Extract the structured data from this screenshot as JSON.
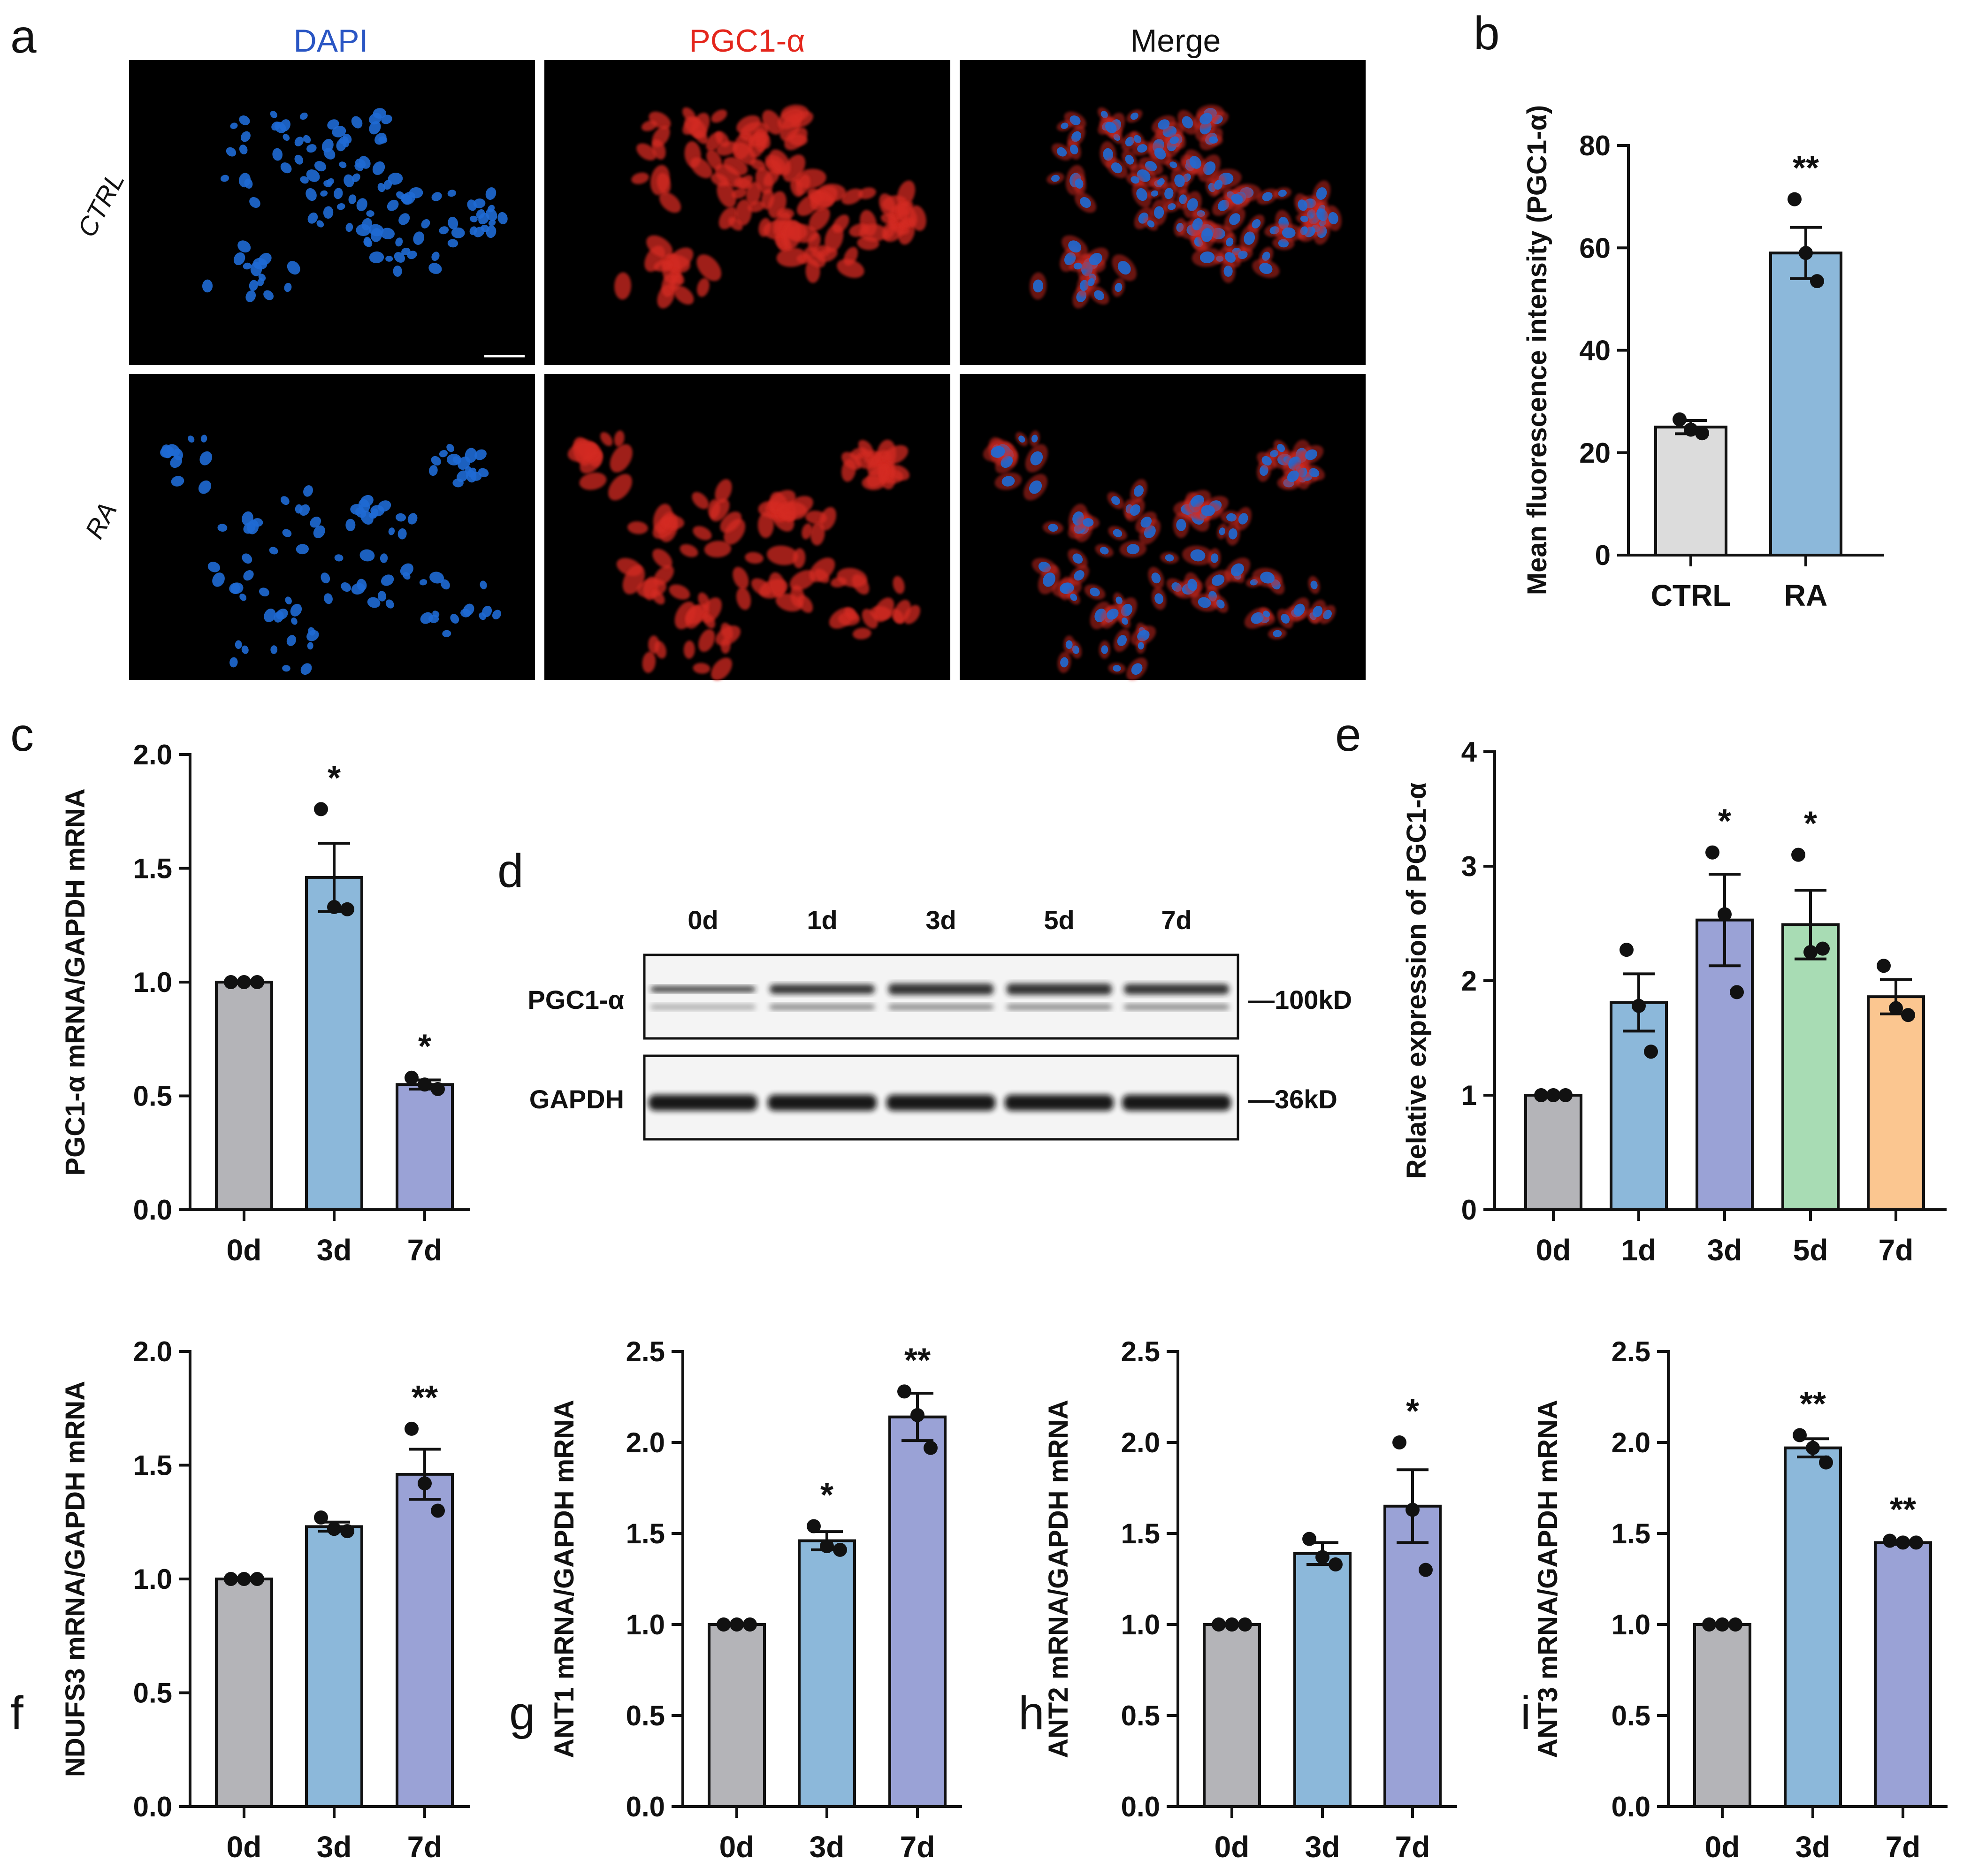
{
  "colors": {
    "gray": "#b4b4b8",
    "blue": "#8cb8da",
    "purple": "#9aa2d6",
    "green": "#a8dcb4",
    "orange": "#fbc690",
    "ctrl_gray": "#dcdcdc",
    "dapi_text": "#2a56c4",
    "pgc_text": "#e4261c"
  },
  "panel_a": {
    "letter": "a",
    "columns": [
      "DAPI",
      "PGC1-α",
      "Merge"
    ],
    "rows": [
      "CTRL",
      "RA"
    ]
  },
  "panel_d": {
    "letter": "d",
    "lanes": [
      "0d",
      "1d",
      "3d",
      "5d",
      "7d"
    ],
    "proteins": [
      {
        "name": "PGC1-α",
        "size": "—100kD"
      },
      {
        "name": "GAPDH",
        "size": "—36kD"
      }
    ]
  },
  "chart_data": [
    {
      "id": "b",
      "type": "bar",
      "letter": "b",
      "ylabel": "Mean fluorescence intensity (PGC1-α)",
      "ylim": [
        0,
        80
      ],
      "yticks": [
        0,
        20,
        40,
        60,
        80
      ],
      "tick_labels": [
        "0",
        "20",
        "40",
        "60",
        "80"
      ],
      "categories": [
        "CTRL",
        "RA"
      ],
      "values": [
        25,
        59
      ],
      "errors": [
        1.3,
        5.0
      ],
      "points": [
        [
          26.5,
          24.5,
          23.8
        ],
        [
          69.5,
          59,
          53.5
        ]
      ],
      "colors": [
        "ctrl_gray",
        "blue"
      ],
      "significance": [
        "",
        "**"
      ]
    },
    {
      "id": "c",
      "type": "bar",
      "letter": "c",
      "ylabel": "PGC1-α mRNA/GAPDH mRNA",
      "ylim": [
        0,
        2
      ],
      "yticks": [
        0,
        0.5,
        1,
        1.5,
        2
      ],
      "tick_labels": [
        "0.0",
        "0.5",
        "1.0",
        "1.5",
        "2.0"
      ],
      "categories": [
        "0d",
        "3d",
        "7d"
      ],
      "values": [
        1.0,
        1.46,
        0.55
      ],
      "errors": [
        0,
        0.15,
        0.02
      ],
      "points": [
        [
          1,
          1,
          1
        ],
        [
          1.76,
          1.33,
          1.32
        ],
        [
          0.58,
          0.55,
          0.53
        ]
      ],
      "colors": [
        "gray",
        "blue",
        "purple"
      ],
      "significance": [
        "",
        "*",
        "*"
      ]
    },
    {
      "id": "e",
      "type": "bar",
      "letter": "e",
      "ylabel": "Relative expression of PGC1-α",
      "ylim": [
        0,
        4
      ],
      "yticks": [
        0,
        1,
        2,
        3,
        4
      ],
      "tick_labels": [
        "0",
        "1",
        "2",
        "3",
        "4"
      ],
      "categories": [
        "0d",
        "1d",
        "3d",
        "5d",
        "7d"
      ],
      "values": [
        1.0,
        1.81,
        2.53,
        2.49,
        1.86
      ],
      "errors": [
        0,
        0.25,
        0.4,
        0.3,
        0.15
      ],
      "points": [
        [
          1,
          1,
          1
        ],
        [
          2.27,
          1.78,
          1.38
        ],
        [
          3.12,
          2.58,
          1.9
        ],
        [
          3.1,
          2.25,
          2.28
        ],
        [
          2.13,
          1.76,
          1.7
        ]
      ],
      "colors": [
        "gray",
        "blue",
        "purple",
        "green",
        "orange"
      ],
      "significance": [
        "",
        "",
        "*",
        "*",
        ""
      ]
    },
    {
      "id": "f",
      "type": "bar",
      "letter": "f",
      "ylabel": "NDUFS3 mRNA/GAPDH mRNA",
      "ylim": [
        0,
        2
      ],
      "yticks": [
        0,
        0.5,
        1,
        1.5,
        2
      ],
      "tick_labels": [
        "0.0",
        "0.5",
        "1.0",
        "1.5",
        "2.0"
      ],
      "categories": [
        "0d",
        "3d",
        "7d"
      ],
      "values": [
        1.0,
        1.23,
        1.46
      ],
      "errors": [
        0,
        0.02,
        0.11
      ],
      "points": [
        [
          1,
          1,
          1
        ],
        [
          1.27,
          1.22,
          1.21
        ],
        [
          1.66,
          1.42,
          1.3
        ]
      ],
      "colors": [
        "gray",
        "blue",
        "purple"
      ],
      "significance": [
        "",
        "",
        "**"
      ]
    },
    {
      "id": "g",
      "type": "bar",
      "letter": "g",
      "ylabel": "ANT1 mRNA/GAPDH mRNA",
      "ylim": [
        0,
        2.5
      ],
      "yticks": [
        0,
        0.5,
        1,
        1.5,
        2,
        2.5
      ],
      "tick_labels": [
        "0.0",
        "0.5",
        "1.0",
        "1.5",
        "2.0",
        "2.5"
      ],
      "categories": [
        "0d",
        "3d",
        "7d"
      ],
      "values": [
        1.0,
        1.46,
        2.14
      ],
      "errors": [
        0,
        0.05,
        0.13
      ],
      "points": [
        [
          1,
          1,
          1
        ],
        [
          1.54,
          1.43,
          1.41
        ],
        [
          2.28,
          2.15,
          1.97
        ]
      ],
      "colors": [
        "gray",
        "blue",
        "purple"
      ],
      "significance": [
        "",
        "*",
        "**"
      ]
    },
    {
      "id": "h",
      "type": "bar",
      "letter": "h",
      "ylabel": "ANT2 mRNA/GAPDH mRNA",
      "ylim": [
        0,
        2.5
      ],
      "yticks": [
        0,
        0.5,
        1,
        1.5,
        2,
        2.5
      ],
      "tick_labels": [
        "0.0",
        "0.5",
        "1.0",
        "1.5",
        "2.0",
        "2.5"
      ],
      "categories": [
        "0d",
        "3d",
        "7d"
      ],
      "values": [
        1.0,
        1.39,
        1.65
      ],
      "errors": [
        0,
        0.06,
        0.2
      ],
      "points": [
        [
          1,
          1,
          1
        ],
        [
          1.47,
          1.37,
          1.33
        ],
        [
          2.0,
          1.63,
          1.3
        ]
      ],
      "colors": [
        "gray",
        "blue",
        "purple"
      ],
      "significance": [
        "",
        "",
        "*"
      ]
    },
    {
      "id": "i",
      "type": "bar",
      "letter": "i",
      "ylabel": "ANT3 mRNA/GAPDH mRNA",
      "ylim": [
        0,
        2.5
      ],
      "yticks": [
        0,
        0.5,
        1,
        1.5,
        2,
        2.5
      ],
      "tick_labels": [
        "0.0",
        "0.5",
        "1.0",
        "1.5",
        "2.0",
        "2.5"
      ],
      "categories": [
        "0d",
        "3d",
        "7d"
      ],
      "values": [
        1.0,
        1.97,
        1.45
      ],
      "errors": [
        0,
        0.05,
        0.01
      ],
      "points": [
        [
          1,
          1,
          1
        ],
        [
          2.04,
          1.97,
          1.89
        ],
        [
          1.46,
          1.45,
          1.45
        ]
      ],
      "colors": [
        "gray",
        "blue",
        "purple"
      ],
      "significance": [
        "",
        "**",
        "**"
      ]
    }
  ]
}
